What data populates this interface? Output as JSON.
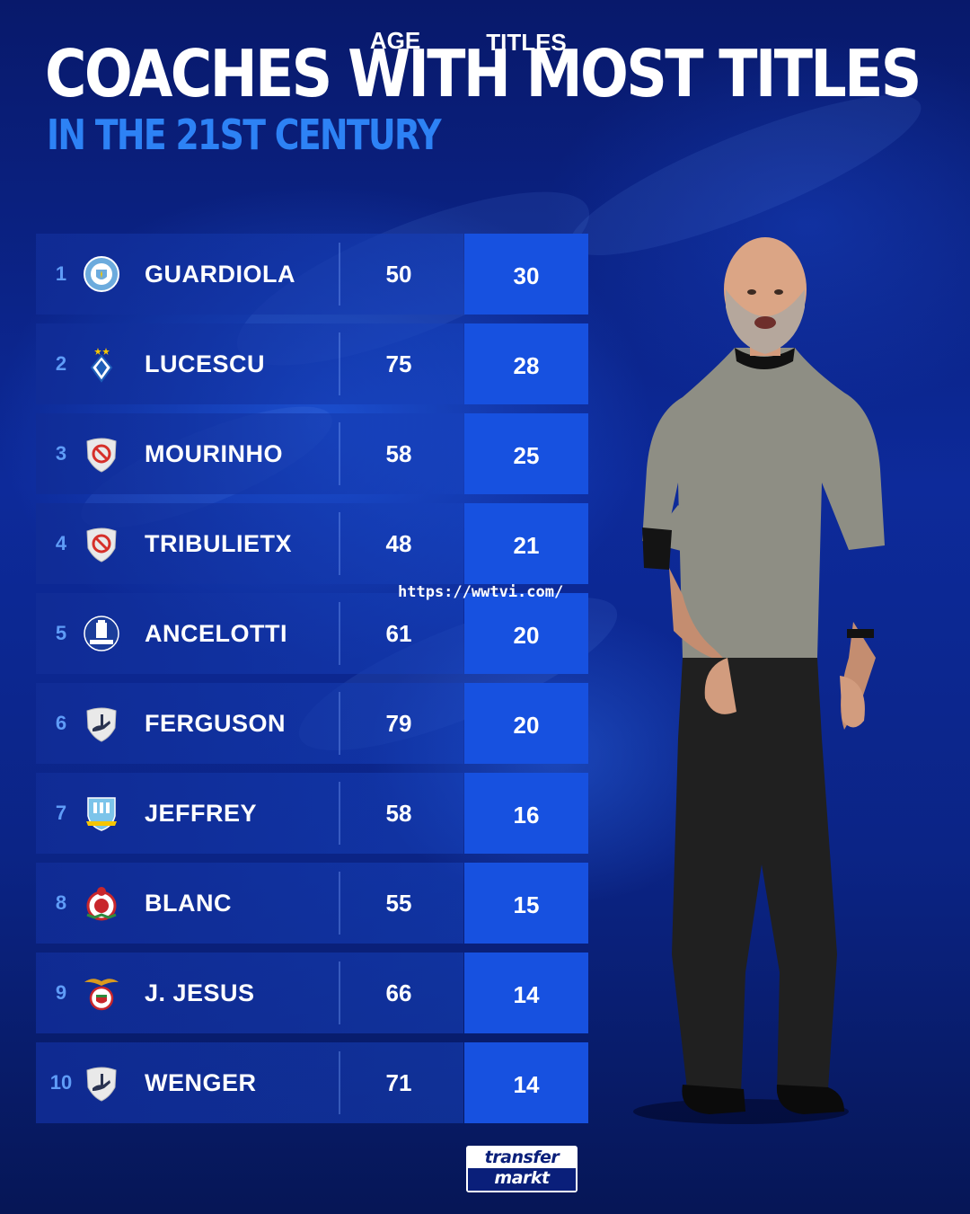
{
  "header": {
    "title": "COACHES WITH MOST TITLES",
    "subtitle": "IN THE 21ST CENTURY"
  },
  "columns": {
    "age": "AGE",
    "titles": "TITLES"
  },
  "rows": [
    {
      "rank": "1",
      "name": "GUARDIOLA",
      "age": "50",
      "titles": "30",
      "crest": "manchester-city-crest"
    },
    {
      "rank": "2",
      "name": "LUCESCU",
      "age": "75",
      "titles": "28",
      "crest": "dynamo-kyiv-crest"
    },
    {
      "rank": "3",
      "name": "MOURINHO",
      "age": "58",
      "titles": "25",
      "crest": "no-club-crest"
    },
    {
      "rank": "4",
      "name": "TRIBULIETX",
      "age": "48",
      "titles": "21",
      "crest": "no-club-crest"
    },
    {
      "rank": "5",
      "name": "ANCELOTTI",
      "age": "61",
      "titles": "20",
      "crest": "everton-crest"
    },
    {
      "rank": "6",
      "name": "FERGUSON",
      "age": "79",
      "titles": "20",
      "crest": "retired-crest"
    },
    {
      "rank": "7",
      "name": "JEFFREY",
      "age": "58",
      "titles": "16",
      "crest": "light-blue-club-crest"
    },
    {
      "rank": "8",
      "name": "BLANC",
      "age": "55",
      "titles": "15",
      "crest": "red-club-crest"
    },
    {
      "rank": "9",
      "name": "J. JESUS",
      "age": "66",
      "titles": "14",
      "crest": "benfica-crest"
    },
    {
      "rank": "10",
      "name": "WENGER",
      "age": "71",
      "titles": "14",
      "crest": "retired-crest"
    }
  ],
  "watermark": "https://wwtvi.com/",
  "logo": {
    "top": "transfer",
    "bottom": "markt"
  },
  "colors": {
    "background": "#0a1f7a",
    "subtitle": "#2d82f5",
    "titles_cell": "#1751e0",
    "rank": "#5f9cf7"
  }
}
